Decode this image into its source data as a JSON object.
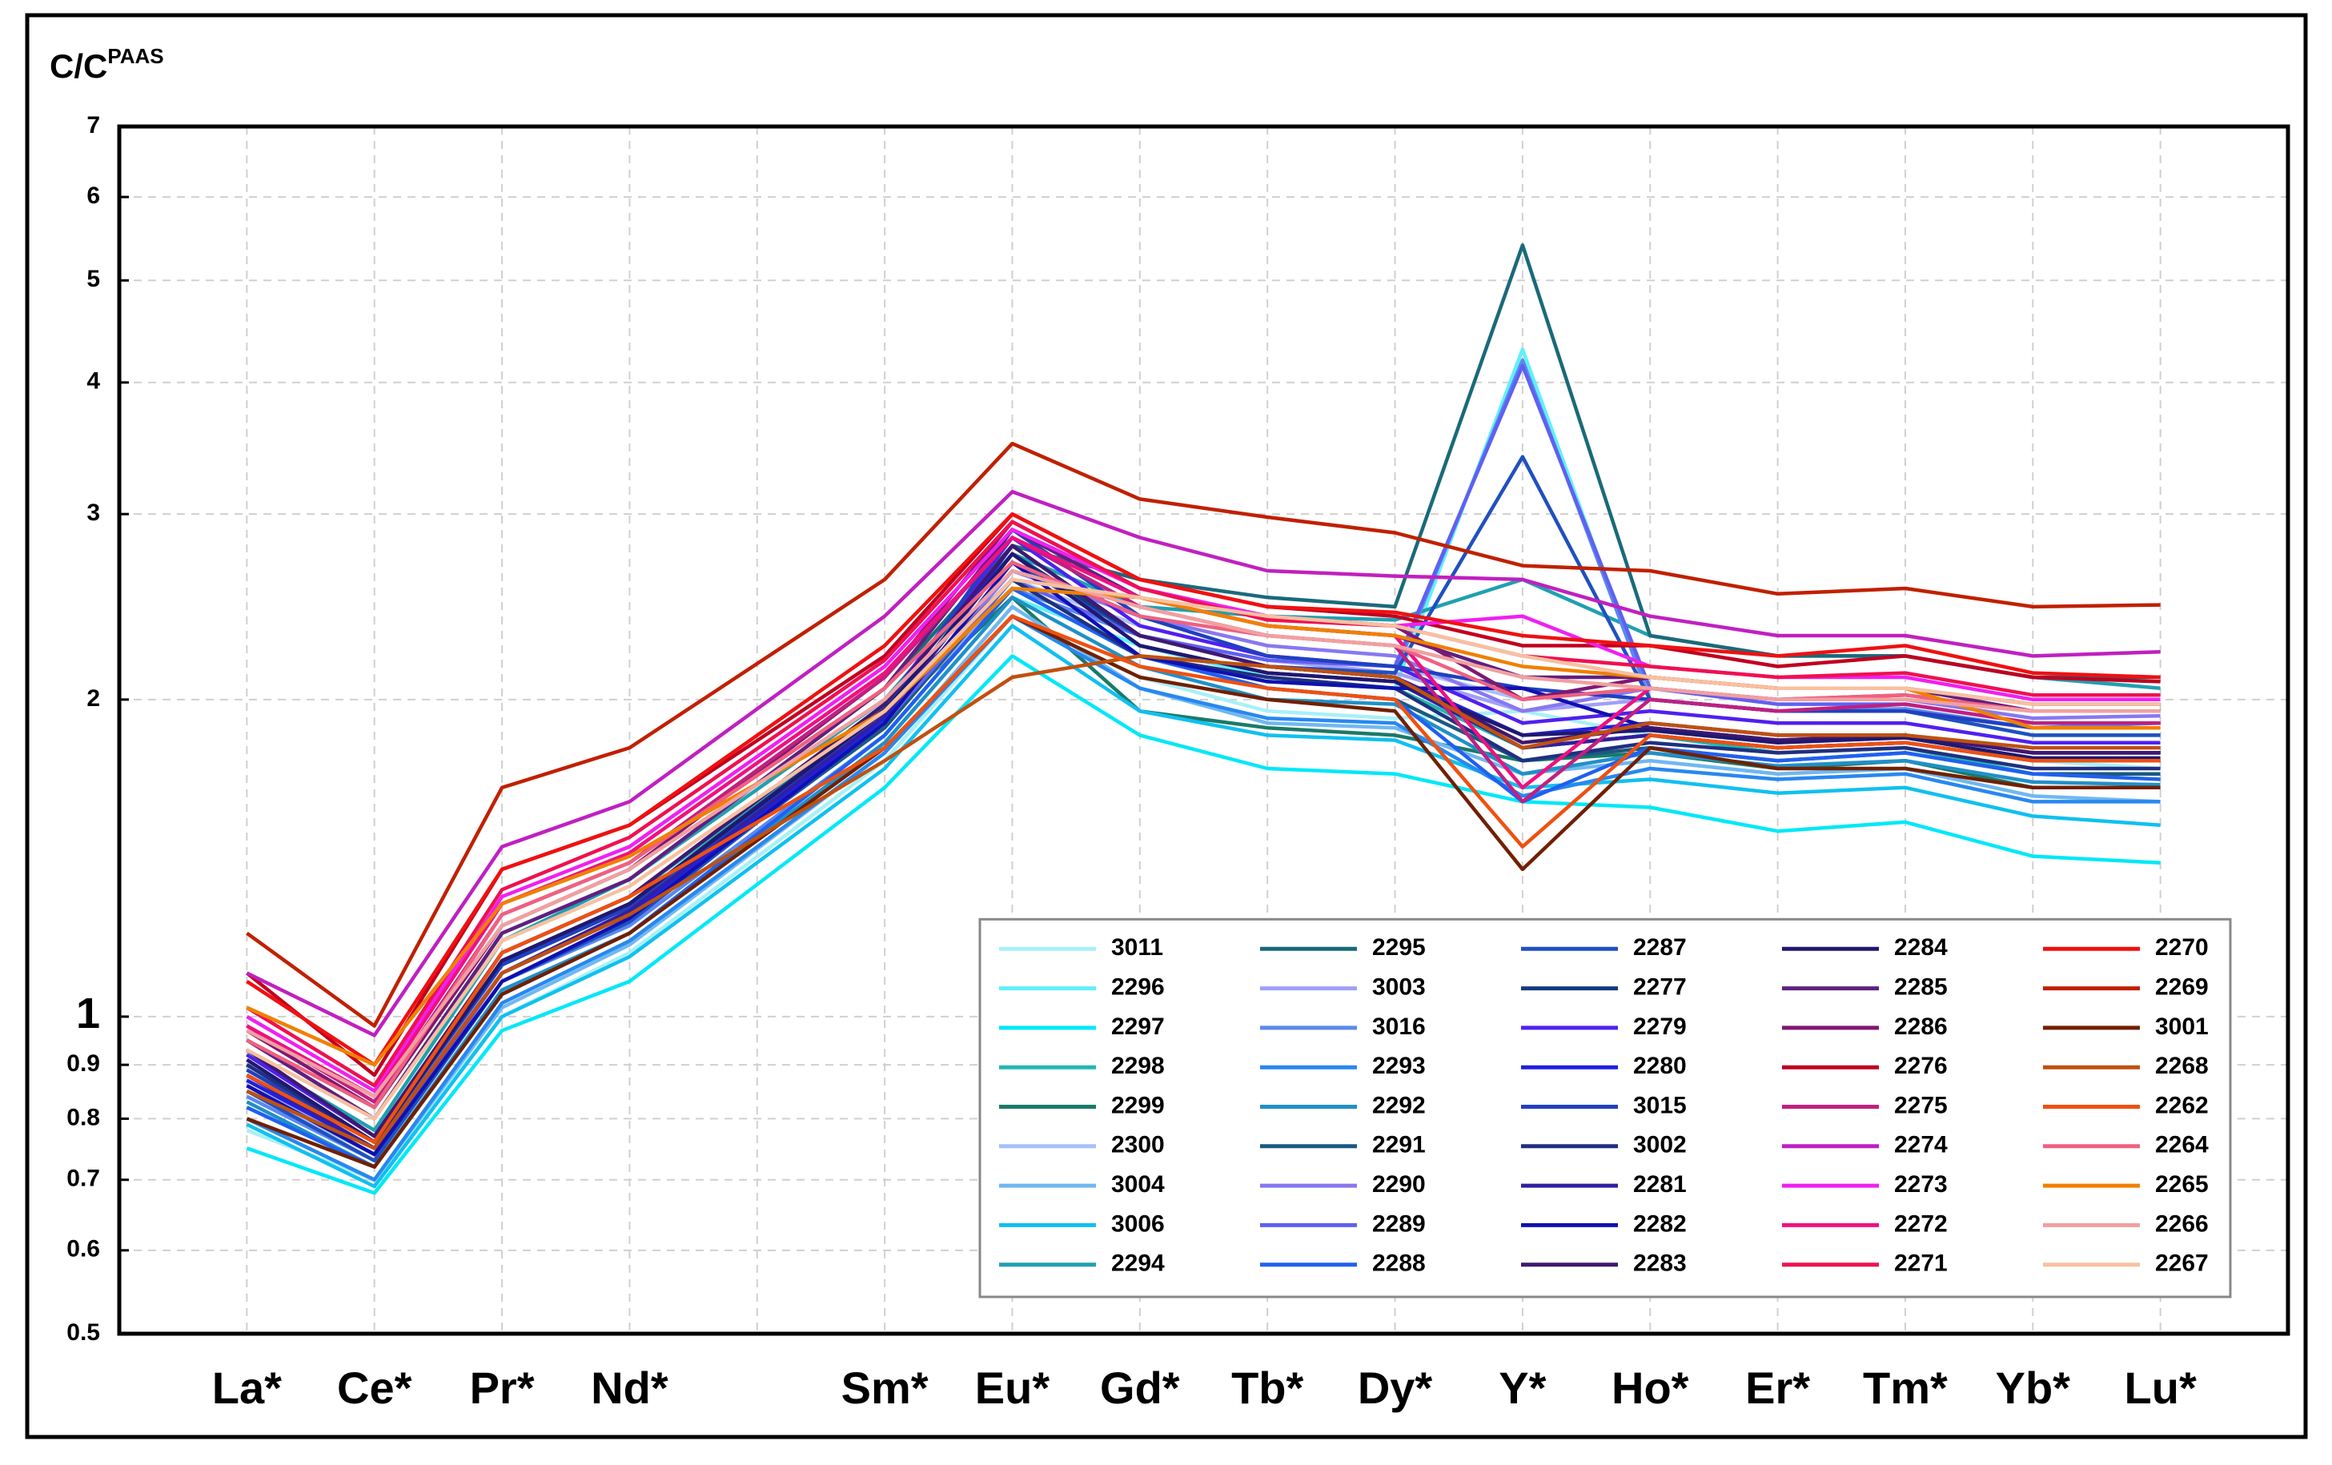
{
  "chart_data": {
    "type": "line",
    "ylabel": {
      "text": "C/C",
      "superscript": "PAAS"
    },
    "categories": [
      "La*",
      "Ce*",
      "Pr*",
      "Nd*",
      "Sm*",
      "Eu*",
      "Gd*",
      "Tb*",
      "Dy*",
      "Y*",
      "Ho*",
      "Er*",
      "Tm*",
      "Yb*",
      "Lu*"
    ],
    "ylim": [
      0.5,
      7
    ],
    "yticks": [
      0.5,
      0.6,
      0.7,
      0.8,
      0.9,
      1,
      2,
      3,
      4,
      5,
      6,
      7
    ],
    "log_scale_y": true,
    "grid": true,
    "legend": "lower right",
    "series": [
      {
        "name": "3011",
        "color": "#a8f0f8",
        "values": [
          0.78,
          0.7,
          1.0,
          1.15,
          1.75,
          2.4,
          2.1,
          1.95,
          1.92,
          1.95,
          1.85,
          1.8,
          1.82,
          1.75,
          1.72
        ]
      },
      {
        "name": "2296",
        "color": "#60f0f8",
        "values": [
          0.82,
          0.72,
          1.05,
          1.2,
          1.82,
          2.5,
          2.25,
          2.1,
          2.05,
          4.3,
          2.0,
          1.95,
          1.95,
          1.85,
          1.85
        ]
      },
      {
        "name": "2297",
        "color": "#00e8f8",
        "values": [
          0.75,
          0.68,
          0.97,
          1.08,
          1.65,
          2.2,
          1.85,
          1.72,
          1.7,
          1.6,
          1.58,
          1.5,
          1.53,
          1.42,
          1.4
        ]
      },
      {
        "name": "2298",
        "color": "#20b8b0",
        "values": [
          0.9,
          0.76,
          1.15,
          1.3,
          1.95,
          2.55,
          2.2,
          2.08,
          2.05,
          1.8,
          1.85,
          1.78,
          1.8,
          1.7,
          1.7
        ]
      },
      {
        "name": "2299",
        "color": "#1a7a6a",
        "values": [
          0.88,
          0.75,
          1.12,
          1.28,
          1.92,
          2.5,
          1.95,
          1.88,
          1.85,
          1.75,
          1.78,
          1.72,
          1.75,
          1.65,
          1.65
        ]
      },
      {
        "name": "2300",
        "color": "#a8c0f8",
        "values": [
          0.85,
          0.74,
          1.1,
          1.25,
          1.9,
          2.6,
          2.35,
          2.2,
          2.15,
          2.0,
          2.05,
          2.0,
          2.0,
          1.95,
          1.95
        ]
      },
      {
        "name": "3004",
        "color": "#70b8f0",
        "values": [
          0.8,
          0.7,
          1.02,
          1.17,
          1.78,
          2.45,
          2.05,
          1.9,
          1.88,
          1.7,
          1.75,
          1.7,
          1.72,
          1.62,
          1.6
        ]
      },
      {
        "name": "3006",
        "color": "#10c0f0",
        "values": [
          0.79,
          0.69,
          1.0,
          1.14,
          1.72,
          2.35,
          1.95,
          1.85,
          1.83,
          1.65,
          1.68,
          1.63,
          1.65,
          1.55,
          1.52
        ]
      },
      {
        "name": "2294",
        "color": "#20a0b0",
        "values": [
          0.92,
          0.78,
          1.18,
          1.35,
          2.0,
          2.75,
          2.45,
          2.4,
          2.38,
          2.6,
          2.3,
          2.2,
          2.2,
          2.1,
          2.05
        ]
      },
      {
        "name": "2295",
        "color": "#1a6a7a",
        "values": [
          0.95,
          0.8,
          1.2,
          1.35,
          2.05,
          2.8,
          2.6,
          2.5,
          2.45,
          5.4,
          2.3,
          2.2,
          2.2,
          2.1,
          2.1
        ]
      },
      {
        "name": "3003",
        "color": "#a0a0f8",
        "values": [
          0.86,
          0.75,
          1.12,
          1.27,
          1.9,
          2.55,
          2.3,
          2.18,
          2.12,
          1.95,
          2.0,
          1.95,
          1.95,
          1.88,
          1.88
        ]
      },
      {
        "name": "3016",
        "color": "#5a88f0",
        "values": [
          0.84,
          0.73,
          1.08,
          1.22,
          1.85,
          2.55,
          2.3,
          2.15,
          2.12,
          4.2,
          2.0,
          1.95,
          1.96,
          1.88,
          1.9
        ]
      },
      {
        "name": "2293",
        "color": "#2888f0",
        "values": [
          0.8,
          0.7,
          1.03,
          1.18,
          1.78,
          2.4,
          2.05,
          1.92,
          1.9,
          1.62,
          1.72,
          1.68,
          1.7,
          1.6,
          1.6
        ]
      },
      {
        "name": "2292",
        "color": "#2090c8",
        "values": [
          0.83,
          0.72,
          1.06,
          1.2,
          1.82,
          2.5,
          2.15,
          2.0,
          1.98,
          1.7,
          1.78,
          1.73,
          1.75,
          1.67,
          1.66
        ]
      },
      {
        "name": "2291",
        "color": "#1a5a80",
        "values": [
          0.87,
          0.75,
          1.1,
          1.25,
          1.88,
          2.6,
          2.2,
          2.05,
          2.0,
          1.75,
          1.8,
          1.75,
          1.78,
          1.7,
          1.7
        ]
      },
      {
        "name": "2290",
        "color": "#8878f0",
        "values": [
          0.88,
          0.76,
          1.13,
          1.28,
          1.92,
          2.65,
          2.4,
          2.25,
          2.2,
          1.95,
          2.05,
          2.0,
          2.0,
          1.92,
          1.93
        ]
      },
      {
        "name": "2289",
        "color": "#6060f0",
        "values": [
          0.86,
          0.74,
          1.1,
          1.25,
          1.9,
          2.6,
          2.3,
          2.18,
          2.15,
          4.15,
          2.05,
          1.98,
          1.98,
          1.9,
          1.9
        ]
      },
      {
        "name": "2288",
        "color": "#2060f0",
        "values": [
          0.82,
          0.72,
          1.05,
          1.2,
          1.85,
          2.55,
          2.2,
          2.05,
          2.0,
          1.6,
          1.8,
          1.75,
          1.78,
          1.7,
          1.68
        ]
      },
      {
        "name": "2287",
        "color": "#2050c0",
        "values": [
          0.85,
          0.73,
          1.08,
          1.23,
          1.9,
          2.7,
          2.3,
          2.15,
          2.12,
          3.4,
          2.0,
          1.95,
          1.95,
          1.85,
          1.85
        ]
      },
      {
        "name": "2277",
        "color": "#143a80",
        "values": [
          0.9,
          0.76,
          1.12,
          1.28,
          1.95,
          2.75,
          2.3,
          2.15,
          2.1,
          1.8,
          1.85,
          1.8,
          1.82,
          1.75,
          1.75
        ]
      },
      {
        "name": "2279",
        "color": "#5020f0",
        "values": [
          0.92,
          0.77,
          1.15,
          1.3,
          1.98,
          2.85,
          2.35,
          2.2,
          2.15,
          1.9,
          1.95,
          1.9,
          1.9,
          1.82,
          1.82
        ]
      },
      {
        "name": "2280",
        "color": "#2020e0",
        "values": [
          0.87,
          0.75,
          1.1,
          1.25,
          1.92,
          2.8,
          2.3,
          2.15,
          2.1,
          1.85,
          1.9,
          1.85,
          1.85,
          1.78,
          1.78
        ]
      },
      {
        "name": "3015",
        "color": "#2040c0",
        "values": [
          0.89,
          0.76,
          1.12,
          1.27,
          1.95,
          2.9,
          2.4,
          2.2,
          2.15,
          2.05,
          2.0,
          1.95,
          1.95,
          1.88,
          1.88
        ]
      },
      {
        "name": "3002",
        "color": "#203080",
        "values": [
          0.9,
          0.76,
          1.13,
          1.28,
          1.96,
          2.6,
          2.2,
          2.1,
          2.05,
          1.75,
          1.82,
          1.78,
          1.8,
          1.72,
          1.72
        ]
      },
      {
        "name": "2281",
        "color": "#3020a0",
        "values": [
          0.88,
          0.75,
          1.1,
          1.26,
          1.93,
          2.75,
          2.25,
          2.12,
          2.08,
          1.8,
          1.85,
          1.8,
          1.82,
          1.75,
          1.75
        ]
      },
      {
        "name": "2282",
        "color": "#1010b0",
        "values": [
          0.86,
          0.74,
          1.08,
          1.24,
          1.9,
          2.7,
          2.2,
          2.08,
          2.05,
          2.05,
          1.88,
          1.83,
          1.85,
          1.78,
          1.78
        ]
      },
      {
        "name": "2283",
        "color": "#401870",
        "values": [
          0.93,
          0.77,
          1.15,
          1.3,
          1.98,
          2.8,
          2.3,
          2.15,
          2.1,
          1.82,
          1.88,
          1.83,
          1.85,
          1.78,
          1.78
        ]
      },
      {
        "name": "2284",
        "color": "#201870",
        "values": [
          0.91,
          0.76,
          1.13,
          1.28,
          1.95,
          2.75,
          2.25,
          2.12,
          2.08,
          1.85,
          1.87,
          1.82,
          1.84,
          1.76,
          1.76
        ]
      },
      {
        "name": "2285",
        "color": "#602080",
        "values": [
          0.95,
          0.8,
          1.2,
          1.35,
          2.05,
          2.9,
          2.5,
          2.35,
          2.3,
          2.1,
          2.1,
          2.05,
          2.05,
          1.95,
          1.95
        ]
      },
      {
        "name": "2286",
        "color": "#801870",
        "values": [
          0.97,
          0.82,
          1.22,
          1.38,
          2.1,
          2.95,
          2.55,
          2.4,
          2.35,
          2.0,
          2.1,
          2.05,
          2.05,
          1.98,
          1.98
        ]
      },
      {
        "name": "2276",
        "color": "#c00020",
        "values": [
          1.1,
          0.88,
          1.38,
          1.52,
          2.2,
          3.0,
          2.6,
          2.45,
          2.4,
          2.25,
          2.25,
          2.15,
          2.2,
          2.1,
          2.08
        ]
      },
      {
        "name": "2275",
        "color": "#c02080",
        "values": [
          0.98,
          0.83,
          1.25,
          1.4,
          2.1,
          2.85,
          2.45,
          2.3,
          2.25,
          1.6,
          2.0,
          1.95,
          1.98,
          1.9,
          1.9
        ]
      },
      {
        "name": "2274",
        "color": "#c020c0",
        "values": [
          1.1,
          0.96,
          1.45,
          1.6,
          2.4,
          3.15,
          2.85,
          2.65,
          2.62,
          2.6,
          2.4,
          2.3,
          2.3,
          2.2,
          2.22
        ]
      },
      {
        "name": "2273",
        "color": "#f020f0",
        "values": [
          1.0,
          0.85,
          1.3,
          1.45,
          2.15,
          2.9,
          2.55,
          2.4,
          2.35,
          2.4,
          2.15,
          2.1,
          2.1,
          2.0,
          2.0
        ]
      },
      {
        "name": "2272",
        "color": "#f01080",
        "values": [
          0.98,
          0.84,
          1.28,
          1.43,
          2.12,
          2.85,
          2.5,
          2.35,
          2.3,
          1.65,
          2.05,
          2.0,
          2.02,
          1.95,
          1.95
        ]
      },
      {
        "name": "2271",
        "color": "#f01050",
        "values": [
          1.02,
          0.86,
          1.32,
          1.48,
          2.18,
          2.95,
          2.55,
          2.38,
          2.35,
          2.2,
          2.15,
          2.1,
          2.12,
          2.02,
          2.02
        ]
      },
      {
        "name": "2270",
        "color": "#f01010",
        "values": [
          1.08,
          0.9,
          1.38,
          1.52,
          2.25,
          3.0,
          2.6,
          2.45,
          2.42,
          2.3,
          2.25,
          2.2,
          2.25,
          2.12,
          2.1
        ]
      },
      {
        "name": "2269",
        "color": "#c02000",
        "values": [
          1.2,
          0.98,
          1.65,
          1.8,
          2.6,
          3.5,
          3.1,
          2.98,
          2.88,
          2.68,
          2.65,
          2.52,
          2.55,
          2.45,
          2.46
        ]
      },
      {
        "name": "3001",
        "color": "#702000",
        "values": [
          0.8,
          0.72,
          1.05,
          1.2,
          1.8,
          2.4,
          2.1,
          2.0,
          1.95,
          1.38,
          1.8,
          1.72,
          1.72,
          1.65,
          1.65
        ]
      },
      {
        "name": "2268",
        "color": "#c05010",
        "values": [
          0.85,
          0.75,
          1.1,
          1.25,
          1.75,
          2.1,
          2.2,
          2.15,
          2.1,
          1.8,
          1.9,
          1.85,
          1.85,
          1.8,
          1.8
        ]
      },
      {
        "name": "2262",
        "color": "#f05010",
        "values": [
          0.88,
          0.76,
          1.15,
          1.3,
          1.8,
          2.4,
          2.15,
          2.05,
          2.0,
          1.45,
          1.85,
          1.8,
          1.82,
          1.75,
          1.75
        ]
      },
      {
        "name": "2264",
        "color": "#f06080",
        "values": [
          0.95,
          0.82,
          1.25,
          1.4,
          2.05,
          2.7,
          2.4,
          2.3,
          2.25,
          2.0,
          2.05,
          2.0,
          2.02,
          1.95,
          1.95
        ]
      },
      {
        "name": "2265",
        "color": "#f08000",
        "values": [
          1.02,
          0.9,
          1.28,
          1.42,
          1.95,
          2.55,
          2.5,
          2.35,
          2.3,
          2.15,
          2.1,
          2.05,
          2.05,
          1.88,
          1.88
        ]
      },
      {
        "name": "2266",
        "color": "#f0a0a0",
        "values": [
          0.97,
          0.84,
          1.22,
          1.38,
          2.0,
          2.65,
          2.45,
          2.3,
          2.25,
          2.1,
          2.05,
          2.0,
          2.0,
          1.95,
          1.95
        ]
      },
      {
        "name": "2267",
        "color": "#f8c0a0",
        "values": [
          0.93,
          0.8,
          1.18,
          1.33,
          1.95,
          2.6,
          2.5,
          2.4,
          2.35,
          2.2,
          2.1,
          2.05,
          2.05,
          1.98,
          1.98
        ]
      }
    ]
  }
}
